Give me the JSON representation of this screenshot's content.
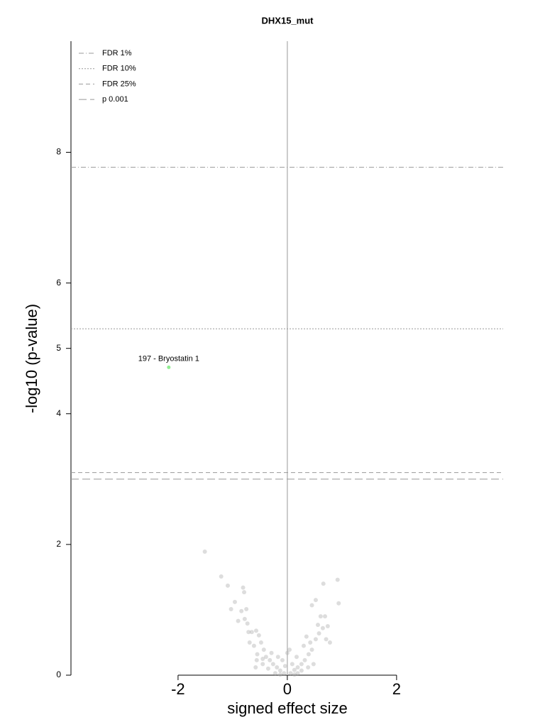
{
  "chart_data": {
    "type": "scatter",
    "title": "DHX15_mut",
    "xlabel": "signed effect size",
    "ylabel": "-log10 (p-value)",
    "xlim": [
      -3.96,
      3.95
    ],
    "ylim": [
      0,
      9.7
    ],
    "xticks": [
      -2,
      0,
      2
    ],
    "yticks": [
      0,
      2,
      4,
      5,
      6,
      8
    ],
    "color": "#aaaaaa",
    "x": [
      -1.51,
      -1.21,
      -1.09,
      -0.81,
      -0.79,
      -0.96,
      -1.03,
      -0.84,
      -0.75,
      -0.9,
      -0.78,
      -0.73,
      -0.71,
      -0.65,
      -0.57,
      -0.52,
      -0.69,
      -0.61,
      -0.48,
      -0.43,
      -0.55,
      -0.39,
      -0.32,
      -0.45,
      -0.26,
      -0.19,
      -0.35,
      -0.13,
      -0.06,
      0.06,
      0.13,
      0.19,
      0.26,
      0.32,
      0.04,
      0.17,
      0.39,
      0.45,
      0.42,
      0.35,
      0.52,
      0.58,
      0.65,
      0.74,
      0.56,
      0.61,
      0.69,
      0.45,
      0.52,
      0.66,
      0.92,
      0.94,
      0.71,
      0.78,
      0.3,
      -0.09,
      0.09,
      0,
      -0.17,
      -0.04,
      -0.22,
      0.19,
      -0.29,
      -0.58,
      -0.56,
      0.48,
      -0.13,
      0.13,
      0.26,
      -0.45,
      0.38
    ],
    "values": [
      1.89,
      1.51,
      1.37,
      1.34,
      1.27,
      1.12,
      1.01,
      0.98,
      1.01,
      0.83,
      0.86,
      0.79,
      0.66,
      0.66,
      0.68,
      0.61,
      0.5,
      0.45,
      0.5,
      0.39,
      0.32,
      0.28,
      0.23,
      0.17,
      0.17,
      0.12,
      0.1,
      0.07,
      0.03,
      0.03,
      0.08,
      0.12,
      0.17,
      0.23,
      0.39,
      0.28,
      0.32,
      0.39,
      0.5,
      0.59,
      0.55,
      0.64,
      0.72,
      0.75,
      0.77,
      0.9,
      0.9,
      1.07,
      1.15,
      1.4,
      1.46,
      1.1,
      0.55,
      0.5,
      0.45,
      0.23,
      0.17,
      0.34,
      0.28,
      0.14,
      0.03,
      0.03,
      0.34,
      0.12,
      0.23,
      0.17,
      0.01,
      0.01,
      0.07,
      0.25,
      0.12
    ],
    "annotation": {
      "text": "197 - Bryostatin 1",
      "x": -2.17,
      "y": 4.71,
      "color": "#90ee90"
    },
    "thresholds": [
      {
        "name": "FDR 1%",
        "value": 7.77,
        "dash": "dashdot"
      },
      {
        "name": "FDR 10%",
        "value": 5.3,
        "dash": "dotted"
      },
      {
        "name": "FDR 25%",
        "value": 3.1,
        "dash": "dashed"
      },
      {
        "name": "p 0.001",
        "value": 3.0,
        "dash": "longdash"
      }
    ],
    "threshold_color": "#999999",
    "zero_line": true,
    "legend": "top-left"
  }
}
